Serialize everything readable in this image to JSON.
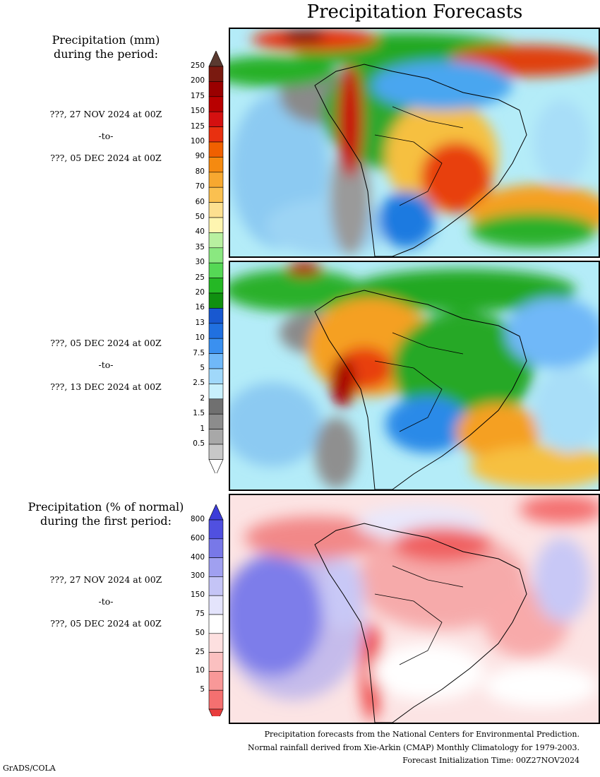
{
  "title": "Precipitation Forecasts",
  "left": {
    "mm_heading": "Precipitation (mm)\nduring the period:",
    "pct_heading": "Precipitation (% of normal)\nduring the first period:",
    "periods": [
      {
        "start": "???, 27 NOV 2024 at 00Z",
        "to": "-to-",
        "end": "???, 05 DEC 2024 at 00Z"
      },
      {
        "start": "???, 05 DEC 2024 at 00Z",
        "to": "-to-",
        "end": "???, 13 DEC 2024 at 00Z"
      },
      {
        "start": "???, 27 NOV 2024 at 00Z",
        "to": "-to-",
        "end": "???, 05 DEC 2024 at 00Z"
      }
    ]
  },
  "mm_colorbar": {
    "labels": [
      "250",
      "200",
      "175",
      "150",
      "125",
      "100",
      "90",
      "80",
      "70",
      "60",
      "50",
      "40",
      "35",
      "30",
      "25",
      "20",
      "16",
      "13",
      "10",
      "7.5",
      "5",
      "2.5",
      "2",
      "1.5",
      "1",
      "0.5"
    ],
    "colors": [
      "#7a1a10",
      "#9a0000",
      "#b80000",
      "#d41010",
      "#e83010",
      "#f06000",
      "#f58a10",
      "#f7a830",
      "#fac050",
      "#fde090",
      "#fef5b0",
      "#b8f0a0",
      "#8ae880",
      "#55d855",
      "#25b825",
      "#109010",
      "#1858d0",
      "#2070e0",
      "#3a90f0",
      "#70b8f8",
      "#a0d8fa",
      "#c8f0fc",
      "#707070",
      "#8c8c8c",
      "#a8a8a8",
      "#c8c8c8"
    ],
    "top_color": "#5a3a30",
    "bottom_color": "#ffffff"
  },
  "pct_colorbar": {
    "labels": [
      "800",
      "600",
      "400",
      "300",
      "150",
      "75",
      "50",
      "25",
      "10",
      "5"
    ],
    "colors": [
      "#5050e0",
      "#7878e8",
      "#a0a0f0",
      "#c4c4f6",
      "#e4e4fc",
      "#ffffff",
      "#fde0e0",
      "#fbc0c0",
      "#f89898",
      "#f47070"
    ],
    "top_color": "#3c3cd8",
    "bottom_color": "#e83c3c"
  },
  "footer": {
    "line1": "Precipitation forecasts from the National Centers for Environmental Prediction.",
    "line2": "Normal rainfall derived from Xie-Arkin (CMAP) Monthly Climatology for 1979-2003.",
    "line3": "Forecast Initialization Time: 00Z27NOV2024"
  },
  "credit": "GrADS/COLA"
}
